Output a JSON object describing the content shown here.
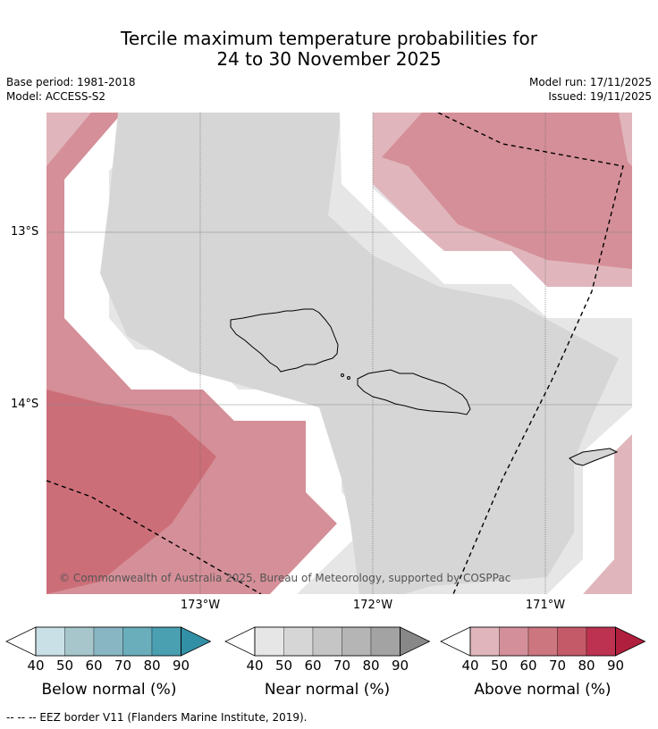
{
  "title_line1": "Tercile maximum temperature probabilities for",
  "title_line2": "24 to 30 November 2025",
  "base_period": "Base period: 1981-2018",
  "model": "Model: ACCESS-S2",
  "model_run": "Model run: 17/11/2025",
  "issued": "Issued: 19/11/2025",
  "lat_labels": [
    "13°S",
    "14°S"
  ],
  "lon_labels": [
    "173°W",
    "172°W",
    "171°W"
  ],
  "copyright": "© Commonwealth of Australia 2025, Bureau of Meteorology, supported by COSPPac",
  "colorbars": [
    {
      "title": "Below normal (%)",
      "ticks": [
        "40",
        "50",
        "60",
        "70",
        "80",
        "90"
      ],
      "colors": [
        "#c8e0e6",
        "#a6c6cc",
        "#88b6c2",
        "#6aaebc",
        "#4a9fb1",
        "#3290a6"
      ]
    },
    {
      "title": "Near normal (%)",
      "ticks": [
        "40",
        "50",
        "60",
        "70",
        "80",
        "90"
      ],
      "colors": [
        "#e6e6e6",
        "#d6d6d6",
        "#c5c5c5",
        "#b5b5b5",
        "#a3a3a3",
        "#888888"
      ]
    },
    {
      "title": "Above normal (%)",
      "ticks": [
        "40",
        "50",
        "60",
        "70",
        "80",
        "90"
      ],
      "colors": [
        "#e0b6bc",
        "#d4909a",
        "#cc7680",
        "#c45a68",
        "#bc3250",
        "#b0203e"
      ]
    }
  ],
  "footer": "-- -- -- EEZ border V11 (Flanders Marine Institute, 2019).",
  "colors": {
    "above40": "#e0b6bc",
    "above50": "#d58f98",
    "above60": "#cc6e78",
    "near40": "#e6e6e6",
    "near50": "#d6d6d6"
  }
}
